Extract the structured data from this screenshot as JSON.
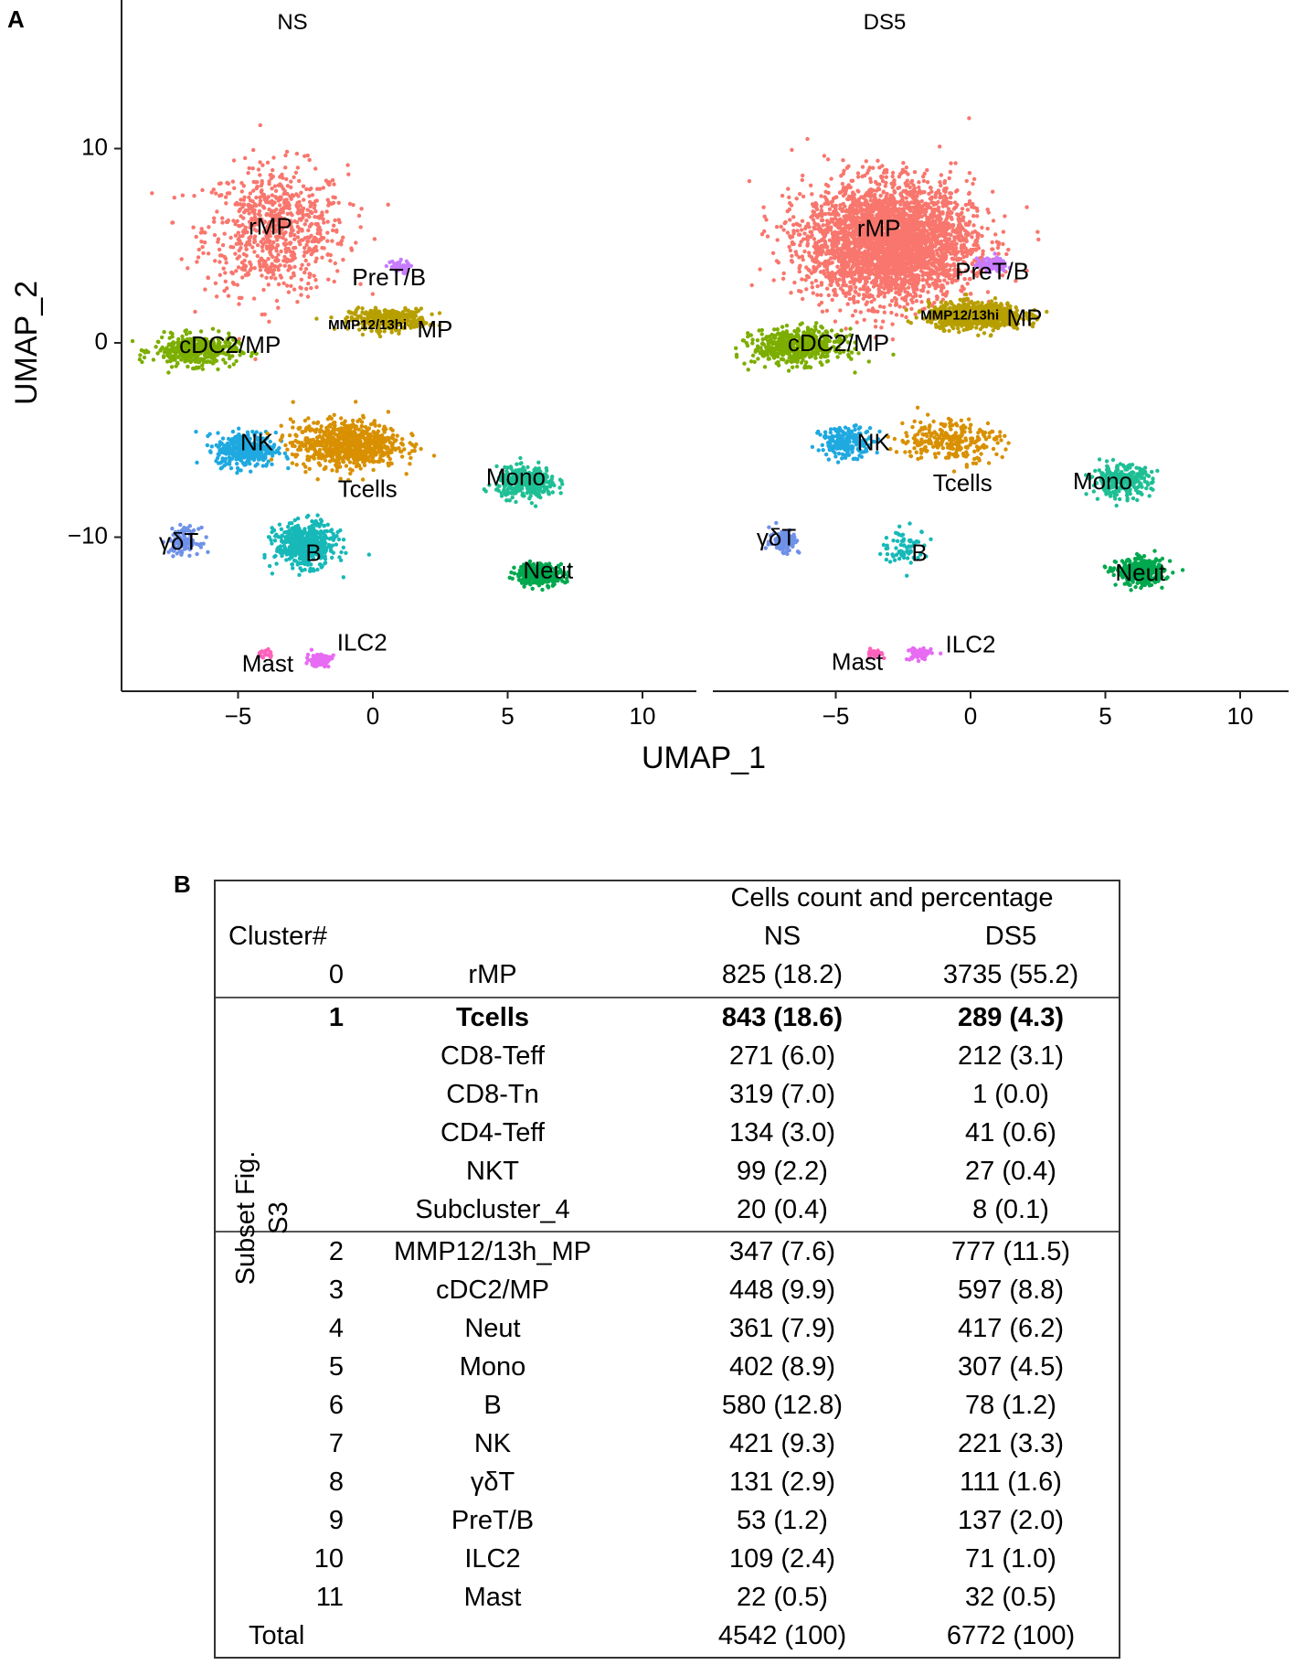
{
  "panel_a_letter": "A",
  "panel_b_letter": "B",
  "chart_data": {
    "type": "scatter",
    "xlabel": "UMAP_1",
    "ylabel": "UMAP_2",
    "xlim": [
      -9.5,
      12
    ],
    "ylim": [
      -18,
      17
    ],
    "x_ticks": [
      -5,
      0,
      5,
      10
    ],
    "y_ticks": [
      10,
      0,
      -10
    ],
    "x_tick_labels": [
      "−5",
      "0",
      "5",
      "10"
    ],
    "y_tick_labels": [
      "10",
      "0",
      "−10"
    ],
    "grid": false,
    "panels": [
      {
        "title": "NS",
        "clusters": [
          {
            "name": "rMP",
            "color": "#F8766D",
            "center": [
              -3.6,
              5.8
            ],
            "spread": [
              2.4,
              3.0
            ],
            "count": 825
          },
          {
            "name": "PreT/B",
            "color": "#C77CFF",
            "center": [
              0.9,
              3.9
            ],
            "spread": [
              0.4,
              0.3
            ],
            "count": 53
          },
          {
            "name": "MMP12/13hiMP",
            "color": "#B79F00",
            "center": [
              0.6,
              1.2
            ],
            "spread": [
              1.3,
              0.5
            ],
            "count": 347
          },
          {
            "name": "cDC2/MP",
            "color": "#7CAE00",
            "center": [
              -6.6,
              -0.4
            ],
            "spread": [
              1.4,
              0.7
            ],
            "count": 448
          },
          {
            "name": "NK",
            "color": "#1FA9E0",
            "center": [
              -4.7,
              -5.5
            ],
            "spread": [
              1.0,
              0.8
            ],
            "count": 421
          },
          {
            "name": "Tcells",
            "color": "#D89000",
            "center": [
              -1.0,
              -5.2
            ],
            "spread": [
              1.8,
              1.1
            ],
            "count": 843
          },
          {
            "name": "Mono",
            "color": "#1FBF95",
            "center": [
              5.7,
              -7.2
            ],
            "spread": [
              1.0,
              0.7
            ],
            "count": 402
          },
          {
            "name": "γδT",
            "color": "#6F91E8",
            "center": [
              -7.0,
              -10.2
            ],
            "spread": [
              0.5,
              0.6
            ],
            "count": 131
          },
          {
            "name": "B",
            "color": "#17B8B8",
            "center": [
              -2.5,
              -10.4
            ],
            "spread": [
              1.0,
              1.0
            ],
            "count": 580
          },
          {
            "name": "Neut",
            "color": "#00A84E",
            "center": [
              6.2,
              -11.9
            ],
            "spread": [
              0.8,
              0.5
            ],
            "count": 361
          },
          {
            "name": "ILC2",
            "color": "#E76BF3",
            "center": [
              -2.0,
              -16.3
            ],
            "spread": [
              0.4,
              0.3
            ],
            "count": 109
          },
          {
            "name": "Mast",
            "color": "#FF62BC",
            "center": [
              -4.0,
              -16.0
            ],
            "spread": [
              0.3,
              0.2
            ],
            "count": 22
          }
        ],
        "labels": [
          {
            "text": "rMP",
            "x": -3.8,
            "y": 5.9
          },
          {
            "text": "PreT/B",
            "x": 0.6,
            "y": 3.3
          },
          {
            "text": "MMP12/13hi",
            "x": -0.2,
            "y": 0.9,
            "small": true
          },
          {
            "text": "MP",
            "x": 2.3,
            "y": 0.6
          },
          {
            "text": "cDC2/MP",
            "x": -5.3,
            "y": -0.2
          },
          {
            "text": "NK",
            "x": -4.3,
            "y": -5.2
          },
          {
            "text": "Tcells",
            "x": -0.2,
            "y": -7.6
          },
          {
            "text": "Mono",
            "x": 5.3,
            "y": -7.0
          },
          {
            "text": "γδT",
            "x": -7.2,
            "y": -10.3
          },
          {
            "text": "B",
            "x": -2.2,
            "y": -10.9
          },
          {
            "text": "Neut",
            "x": 6.5,
            "y": -11.8
          },
          {
            "text": "ILC2",
            "x": -0.4,
            "y": -15.5
          },
          {
            "text": "Mast",
            "x": -3.9,
            "y": -16.6
          }
        ]
      },
      {
        "title": "DS5",
        "clusters": [
          {
            "name": "rMP",
            "color": "#F8766D",
            "center": [
              -3.0,
              5.2
            ],
            "spread": [
              2.8,
              2.7
            ],
            "count": 3735
          },
          {
            "name": "PreT/B",
            "color": "#C77CFF",
            "center": [
              0.8,
              4.0
            ],
            "spread": [
              0.5,
              0.3
            ],
            "count": 137
          },
          {
            "name": "MMP12/13hiMP",
            "color": "#B79F00",
            "center": [
              0.2,
              1.4
            ],
            "spread": [
              1.6,
              0.6
            ],
            "count": 777
          },
          {
            "name": "cDC2/MP",
            "color": "#7CAE00",
            "center": [
              -6.4,
              -0.2
            ],
            "spread": [
              1.5,
              0.8
            ],
            "count": 597
          },
          {
            "name": "NK",
            "color": "#1FA9E0",
            "center": [
              -4.6,
              -5.1
            ],
            "spread": [
              0.9,
              0.7
            ],
            "count": 221
          },
          {
            "name": "Tcells",
            "color": "#D89000",
            "center": [
              -0.8,
              -5.0
            ],
            "spread": [
              1.7,
              1.0
            ],
            "count": 289
          },
          {
            "name": "Mono",
            "color": "#1FBF95",
            "center": [
              5.6,
              -7.1
            ],
            "spread": [
              1.0,
              0.7
            ],
            "count": 307
          },
          {
            "name": "γδT",
            "color": "#6F91E8",
            "center": [
              -6.9,
              -10.2
            ],
            "spread": [
              0.5,
              0.6
            ],
            "count": 111
          },
          {
            "name": "B",
            "color": "#17B8B8",
            "center": [
              -2.4,
              -10.5
            ],
            "spread": [
              0.8,
              0.8
            ],
            "count": 78
          },
          {
            "name": "Neut",
            "color": "#00A84E",
            "center": [
              6.3,
              -11.8
            ],
            "spread": [
              0.8,
              0.6
            ],
            "count": 417
          },
          {
            "name": "ILC2",
            "color": "#E76BF3",
            "center": [
              -1.9,
              -16.0
            ],
            "spread": [
              0.4,
              0.3
            ],
            "count": 71
          },
          {
            "name": "Mast",
            "color": "#FF62BC",
            "center": [
              -3.6,
              -16.0
            ],
            "spread": [
              0.3,
              0.2
            ],
            "count": 32
          }
        ],
        "labels": [
          {
            "text": "rMP",
            "x": -3.4,
            "y": 5.8
          },
          {
            "text": "PreT/B",
            "x": 0.8,
            "y": 3.6
          },
          {
            "text": "MMP12/13hi",
            "x": -0.4,
            "y": 1.4,
            "small": true
          },
          {
            "text": "MP",
            "x": 2.0,
            "y": 1.2
          },
          {
            "text": "cDC2/MP",
            "x": -4.9,
            "y": -0.1
          },
          {
            "text": "NK",
            "x": -3.6,
            "y": -5.2
          },
          {
            "text": "Tcells",
            "x": -0.3,
            "y": -7.3
          },
          {
            "text": "Mono",
            "x": 4.9,
            "y": -7.2
          },
          {
            "text": "γδT",
            "x": -7.2,
            "y": -10.1
          },
          {
            "text": "B",
            "x": -1.9,
            "y": -10.9
          },
          {
            "text": "Neut",
            "x": 6.3,
            "y": -11.9
          },
          {
            "text": "ILC2",
            "x": 0.0,
            "y": -15.6
          },
          {
            "text": "Mast",
            "x": -4.2,
            "y": -16.5
          }
        ]
      }
    ]
  },
  "table": {
    "header_title": "Cells count and percentage",
    "header_cluster": "Cluster#",
    "header_ns": "NS",
    "header_ds5": "DS5",
    "subset_label_line1": "Subset Fig.",
    "subset_label_line2": "S3",
    "rows": [
      {
        "num": "0",
        "name": "rMP",
        "ns": "825 (18.2)",
        "ds5": "3735 (55.2)",
        "bold": false
      },
      {
        "num": "1",
        "name": "Tcells",
        "ns": "843 (18.6)",
        "ds5": "289 (4.3)",
        "bold": true
      },
      {
        "num": "",
        "name": "CD8-Teff",
        "ns": "271 (6.0)",
        "ds5": "212 (3.1)",
        "bold": false
      },
      {
        "num": "",
        "name": "CD8-Tn",
        "ns": "319 (7.0)",
        "ds5": "1 (0.0)",
        "bold": false
      },
      {
        "num": "",
        "name": "CD4-Teff",
        "ns": "134 (3.0)",
        "ds5": "41 (0.6)",
        "bold": false
      },
      {
        "num": "",
        "name": "NKT",
        "ns": "99 (2.2)",
        "ds5": "27 (0.4)",
        "bold": false
      },
      {
        "num": "",
        "name": "Subcluster_4",
        "ns": "20 (0.4)",
        "ds5": "8 (0.1)",
        "bold": false
      },
      {
        "num": "2",
        "name": "MMP12/13h_MP",
        "ns": "347 (7.6)",
        "ds5": "777 (11.5)",
        "bold": false
      },
      {
        "num": "3",
        "name": "cDC2/MP",
        "ns": "448 (9.9)",
        "ds5": "597 (8.8)",
        "bold": false
      },
      {
        "num": "4",
        "name": "Neut",
        "ns": "361 (7.9)",
        "ds5": "417 (6.2)",
        "bold": false
      },
      {
        "num": "5",
        "name": "Mono",
        "ns": "402 (8.9)",
        "ds5": "307 (4.5)",
        "bold": false
      },
      {
        "num": "6",
        "name": "B",
        "ns": "580 (12.8)",
        "ds5": "78 (1.2)",
        "bold": false
      },
      {
        "num": "7",
        "name": "NK",
        "ns": "421 (9.3)",
        "ds5": "221 (3.3)",
        "bold": false
      },
      {
        "num": "8",
        "name": "γδT",
        "ns": "131 (2.9)",
        "ds5": "111 (1.6)",
        "bold": false
      },
      {
        "num": "9",
        "name": "PreT/B",
        "ns": "53 (1.2)",
        "ds5": "137 (2.0)",
        "bold": false
      },
      {
        "num": "10",
        "name": "ILC2",
        "ns": "109 (2.4)",
        "ds5": "71 (1.0)",
        "bold": false
      },
      {
        "num": "11",
        "name": "Mast",
        "ns": "22 (0.5)",
        "ds5": "32 (0.5)",
        "bold": false
      }
    ],
    "total_label": "Total",
    "total_ns": "4542 (100)",
    "total_ds5": "6772 (100)"
  }
}
